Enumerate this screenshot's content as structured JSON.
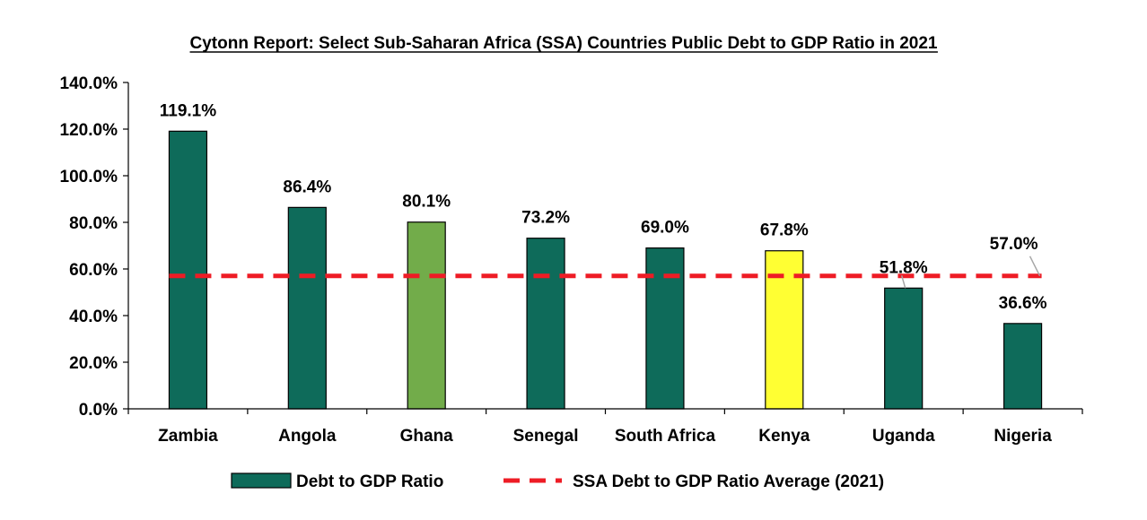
{
  "chart_data": {
    "type": "bar",
    "title": "Cytonn Report: Select Sub-Saharan Africa (SSA) Countries Public Debt to GDP Ratio in 2021",
    "categories": [
      "Zambia",
      "Angola",
      "Ghana",
      "Senegal",
      "South Africa",
      "Kenya",
      "Uganda",
      "Nigeria"
    ],
    "series": [
      {
        "name": "Debt to GDP Ratio",
        "values": [
          119.1,
          86.4,
          80.1,
          73.2,
          69.0,
          67.8,
          51.8,
          36.6
        ],
        "labels": [
          "119.1%",
          "86.4%",
          "80.1%",
          "73.2%",
          "69.0%",
          "67.8%",
          "51.8%",
          "36.6%"
        ],
        "color": "#0e6b5a",
        "point_colors": [
          "#0e6b5a",
          "#0e6b5a",
          "#72ac4a",
          "#0e6b5a",
          "#0e6b5a",
          "#ffff33",
          "#0e6b5a",
          "#0e6b5a"
        ]
      },
      {
        "name": "SSA Debt to GDP Ratio Average (2021)",
        "type": "line",
        "value": 57.0,
        "label": "57.0%",
        "color": "#ee1c25",
        "style": "dashed"
      }
    ],
    "ylim": [
      0,
      140
    ],
    "yticks": [
      0,
      20,
      40,
      60,
      80,
      100,
      120,
      140
    ],
    "ytick_labels": [
      "0.0%",
      "20.0%",
      "40.0%",
      "60.0%",
      "80.0%",
      "100.0%",
      "120.0%",
      "140.0%"
    ],
    "xlabel": "",
    "ylabel": "",
    "grid": false,
    "legend": "bottom"
  }
}
